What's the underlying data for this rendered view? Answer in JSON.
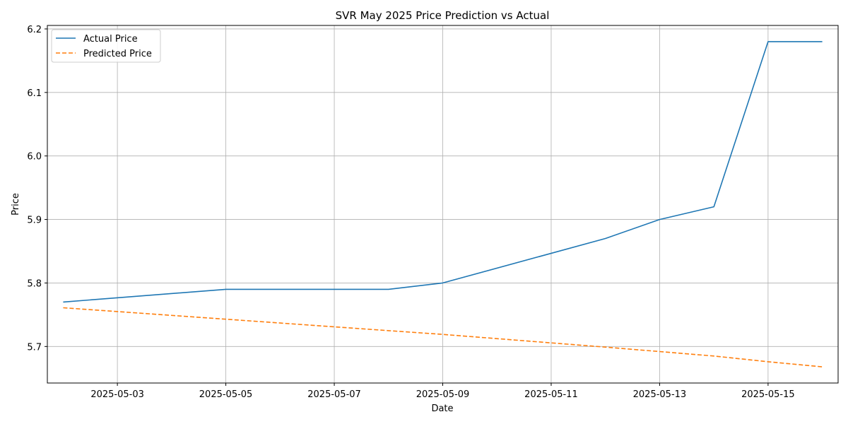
{
  "chart_data": {
    "type": "line",
    "title": "SVR May 2025 Price Prediction vs Actual",
    "xlabel": "Date",
    "ylabel": "Price",
    "x_type": "date",
    "xlim": [
      "2025-05-01T17:00",
      "2025-05-16T07:00"
    ],
    "ylim": [
      5.6425,
      6.2055
    ],
    "x_ticks": [
      "2025-05-03",
      "2025-05-05",
      "2025-05-07",
      "2025-05-09",
      "2025-05-11",
      "2025-05-13",
      "2025-05-15"
    ],
    "y_ticks": [
      5.7,
      5.8,
      5.9,
      6.0,
      6.1,
      6.2
    ],
    "y_tick_labels": [
      "5.7",
      "5.8",
      "5.9",
      "6.0",
      "6.1",
      "6.2"
    ],
    "grid": true,
    "legend_position": "top-left",
    "series": [
      {
        "name": "Actual Price",
        "color": "#1f77b4",
        "style": "solid",
        "x": [
          "2025-05-02",
          "2025-05-05",
          "2025-05-06",
          "2025-05-07",
          "2025-05-08",
          "2025-05-09",
          "2025-05-12",
          "2025-05-13",
          "2025-05-14",
          "2025-05-15",
          "2025-05-16"
        ],
        "y": [
          5.77,
          5.79,
          5.79,
          5.79,
          5.79,
          5.8,
          5.87,
          5.9,
          5.92,
          6.18,
          6.18
        ]
      },
      {
        "name": "Predicted Price",
        "color": "#ff7f0e",
        "style": "dashed",
        "x": [
          "2025-05-02",
          "2025-05-05",
          "2025-05-06",
          "2025-05-07",
          "2025-05-08",
          "2025-05-09",
          "2025-05-12",
          "2025-05-13",
          "2025-05-14",
          "2025-05-15",
          "2025-05-16"
        ],
        "y": [
          5.761,
          5.743,
          5.737,
          5.731,
          5.725,
          5.719,
          5.699,
          5.692,
          5.685,
          5.676,
          5.668
        ]
      }
    ]
  }
}
